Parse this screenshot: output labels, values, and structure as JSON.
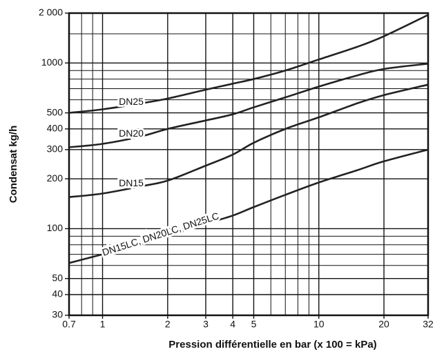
{
  "chart_data": {
    "type": "line",
    "xlabel": "Pression différentielle en bar (x 100 = kPa)",
    "ylabel": "Condensat kg/h",
    "xscale": "log",
    "yscale": "log",
    "grid": true,
    "x": [
      0.7,
      1,
      1.5,
      2,
      3,
      4,
      5,
      7,
      10,
      15,
      20,
      32
    ],
    "series": [
      {
        "name": "DN25",
        "color": "#222222",
        "values": [
          500,
          525,
          570,
          610,
          690,
          750,
          800,
          900,
          1050,
          1250,
          1450,
          1950
        ]
      },
      {
        "name": "DN20",
        "color": "#222222",
        "values": [
          310,
          325,
          360,
          400,
          450,
          490,
          540,
          620,
          720,
          840,
          920,
          990
        ]
      },
      {
        "name": "DN15",
        "color": "#222222",
        "values": [
          155,
          163,
          180,
          195,
          240,
          280,
          330,
          400,
          470,
          570,
          640,
          740
        ]
      },
      {
        "name": "DN15LC, DN20LC, DN25LC",
        "color": "#222222",
        "values": [
          62,
          70,
          80,
          90,
          107,
          120,
          135,
          160,
          190,
          225,
          255,
          300
        ]
      }
    ],
    "xlim": [
      0.7,
      32
    ],
    "ylim": [
      30,
      2000
    ],
    "xticks": [
      0.7,
      1,
      2,
      3,
      4,
      5,
      10,
      20,
      32
    ],
    "yticks": [
      30,
      40,
      50,
      100,
      200,
      300,
      400,
      500,
      1000,
      {
        "value": 2000,
        "label": "2 000"
      }
    ],
    "xminor": [
      0.8,
      0.9,
      6,
      7,
      8,
      9
    ],
    "yminor": [
      60,
      70,
      80,
      90,
      600,
      700,
      800,
      900,
      1500
    ]
  }
}
